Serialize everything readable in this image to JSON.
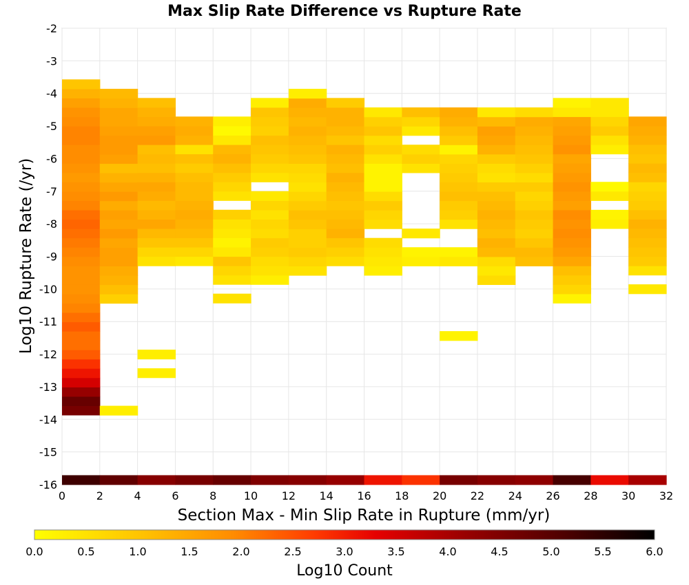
{
  "chart_data": {
    "type": "heatmap",
    "title": "Max Slip Rate Difference vs Rupture Rate",
    "xlabel": "Section Max - Min Slip Rate in Rupture (mm/yr)",
    "ylabel": "Log10 Rupture Rate (/yr)",
    "xlim": [
      0,
      32
    ],
    "ylim": [
      -16,
      -2
    ],
    "x_ticks": [
      "0",
      "2",
      "4",
      "6",
      "8",
      "10",
      "12",
      "14",
      "16",
      "18",
      "20",
      "22",
      "24",
      "26",
      "28",
      "30",
      "32"
    ],
    "y_ticks": [
      "-2",
      "-3",
      "-4",
      "-5",
      "-6",
      "-7",
      "-8",
      "-9",
      "-10",
      "-11",
      "-12",
      "-13",
      "-14",
      "-15",
      "-16"
    ],
    "grid": true,
    "x_bin_width": 2,
    "y_bin_height": 0.286,
    "colorbar": {
      "label": "Log10 Count",
      "range": [
        0,
        6
      ],
      "ticks": [
        "0.0",
        "0.5",
        "1.0",
        "1.5",
        "2.0",
        "2.5",
        "3.0",
        "3.5",
        "4.0",
        "4.5",
        "5.0",
        "5.5",
        "6.0"
      ]
    },
    "columns": [
      {
        "x0": 0,
        "ymax": -3.57,
        "bottom": [
          5.3,
          4.6,
          4.8,
          4.2,
          3.5,
          3.1,
          2.8,
          2.4,
          2.2,
          2.2,
          2.4,
          2.2,
          2.0,
          1.9,
          1.8,
          1.8,
          1.8,
          1.9,
          2.0,
          2.1,
          2.2,
          2.3,
          2.2,
          2.0,
          1.9,
          1.8,
          1.7,
          1.8,
          1.9,
          1.9,
          2.0,
          2.0,
          1.9,
          1.8,
          1.6,
          1.3,
          1.0
        ]
      },
      {
        "x0": 2,
        "ymax": -3.86,
        "bottom": [
          4.9,
          0.3,
          null,
          null,
          null,
          null,
          null,
          null,
          null,
          null,
          null,
          null,
          null,
          0.8,
          1.1,
          1.3,
          1.4,
          1.6,
          1.6,
          1.5,
          1.7,
          1.5,
          1.6,
          1.4,
          1.7,
          1.5,
          1.3,
          1.1,
          1.6,
          1.7,
          1.7,
          1.6,
          1.5,
          1.5,
          1.3,
          1.2
        ]
      },
      {
        "x0": 4,
        "ymax": -4.14,
        "bottom": [
          4.4,
          null,
          0.3,
          null,
          0.3,
          null,
          null,
          null,
          null,
          null,
          null,
          null,
          null,
          null,
          0.5,
          0.7,
          1.0,
          1.2,
          1.5,
          1.3,
          1.2,
          1.4,
          1.5,
          1.3,
          1.1,
          1.2,
          1.1,
          1.7,
          1.6,
          1.4,
          1.3,
          1.1
        ]
      },
      {
        "x0": 6,
        "ymax": -4.71,
        "bottom": [
          4.6,
          null,
          null,
          null,
          null,
          null,
          null,
          null,
          null,
          null,
          null,
          null,
          null,
          null,
          0.4,
          0.7,
          1.0,
          1.2,
          1.3,
          1.4,
          1.3,
          1.2,
          1.2,
          1.1,
          0.9,
          1.1,
          0.5,
          1.3,
          1.4,
          1.3
        ]
      },
      {
        "x0": 8,
        "ymax": -4.71,
        "bottom": [
          4.8,
          null,
          null,
          null,
          null,
          null,
          null,
          null,
          null,
          null,
          null,
          null,
          null,
          null,
          null,
          null,
          null,
          0.5,
          null,
          0.5,
          0.7,
          1.0,
          0.4,
          0.2,
          0.4,
          0.5,
          0.8,
          null,
          0.5,
          0.7,
          0.9,
          1.1,
          1.3,
          1.2,
          0.4,
          0.1,
          0.3
        ]
      },
      {
        "x0": 10,
        "ymax": -4.14,
        "bottom": [
          4.5,
          null,
          null,
          null,
          null,
          null,
          null,
          null,
          null,
          null,
          null,
          null,
          null,
          null,
          null,
          0.3,
          0.5,
          0.6,
          0.8,
          0.9,
          0.6,
          0.7,
          0.5,
          0.7,
          0.4,
          null,
          0.5,
          0.7,
          0.9,
          1.0,
          1.1,
          0.8,
          0.9,
          1.0,
          0.3
        ]
      },
      {
        "x0": 12,
        "ymax": -3.86,
        "bottom": [
          4.4,
          null,
          null,
          null,
          null,
          null,
          null,
          null,
          null,
          null,
          null,
          null,
          null,
          null,
          0.5,
          0.7,
          0.9,
          0.8,
          0.8,
          1.0,
          1.1,
          0.9,
          0.7,
          0.5,
          0.6,
          0.7,
          1.0,
          1.1,
          1.2,
          1.3,
          1.2,
          1.3,
          1.4,
          0.3
        ]
      },
      {
        "x0": 14,
        "ymax": -4.14,
        "bottom": [
          4.2,
          null,
          null,
          null,
          null,
          null,
          null,
          null,
          null,
          null,
          null,
          null,
          null,
          null,
          0.6,
          0.8,
          1.0,
          1.3,
          1.2,
          1.1,
          1.0,
          1.1,
          1.2,
          1.3,
          1.1,
          1.2,
          1.3,
          1.0,
          1.2,
          1.3,
          1.3,
          0.9
        ]
      },
      {
        "x0": 16,
        "ymax": -4.43,
        "bottom": [
          3.1,
          null,
          null,
          null,
          null,
          null,
          null,
          null,
          null,
          null,
          null,
          null,
          null,
          null,
          null,
          null,
          null,
          null,
          0.3,
          0.4,
          0.5,
          0.6,
          null,
          0.6,
          0.7,
          0.9,
          0.6,
          0.2,
          0.2,
          0.2,
          0.5,
          0.8,
          0.6,
          1.0,
          0.8,
          0.4
        ]
      },
      {
        "x0": 18,
        "ymax": -4.43,
        "bottom": [
          2.8,
          null,
          null,
          null,
          null,
          null,
          null,
          null,
          null,
          null,
          null,
          null,
          null,
          null,
          null,
          null,
          null,
          null,
          0.3,
          0.2,
          null,
          0.4,
          null,
          null,
          null,
          null,
          null,
          null,
          0.5,
          0.8,
          0.6,
          null,
          0.4,
          0.7,
          1.1
        ]
      },
      {
        "x0": 20,
        "ymax": -4.43,
        "bottom": [
          4.6,
          null,
          null,
          null,
          null,
          null,
          null,
          null,
          null,
          null,
          null,
          0.2,
          null,
          null,
          null,
          null,
          null,
          null,
          null,
          0.4,
          0.2,
          null,
          null,
          0.5,
          0.8,
          0.9,
          1.1,
          1.0,
          0.9,
          0.8,
          0.7,
          0.2,
          0.9,
          1.1,
          1.3,
          1.4
        ]
      },
      {
        "x0": 22,
        "ymax": -4.43,
        "bottom": [
          4.4,
          null,
          null,
          null,
          null,
          null,
          null,
          null,
          null,
          null,
          null,
          null,
          null,
          null,
          null,
          0.6,
          0.4,
          0.6,
          1.2,
          1.3,
          1.1,
          1.2,
          1.3,
          1.2,
          1.1,
          0.9,
          0.5,
          0.6,
          0.9,
          1.3,
          1.5,
          1.6,
          1.2,
          0.4
        ]
      },
      {
        "x0": 24,
        "ymax": -4.43,
        "bottom": [
          4.3,
          null,
          null,
          null,
          null,
          null,
          null,
          null,
          null,
          null,
          null,
          null,
          null,
          null,
          null,
          null,
          1.1,
          1.2,
          1.0,
          0.8,
          0.9,
          1.0,
          0.8,
          0.7,
          0.9,
          0.6,
          0.8,
          1.0,
          1.1,
          1.2,
          1.3,
          1.4,
          0.6
        ]
      },
      {
        "x0": 26,
        "ymax": -4.14,
        "bottom": [
          5.2,
          null,
          null,
          null,
          null,
          null,
          null,
          null,
          null,
          null,
          null,
          null,
          0.2,
          0.7,
          0.9,
          1.1,
          1.5,
          1.7,
          1.8,
          1.9,
          1.8,
          1.9,
          1.6,
          1.7,
          1.8,
          1.7,
          1.6,
          1.5,
          1.8,
          1.7,
          1.6,
          1.5,
          0.4,
          0.2
        ]
      },
      {
        "x0": 28,
        "ymax": -4.14,
        "bottom": [
          3.2,
          null,
          null,
          null,
          null,
          null,
          null,
          null,
          null,
          null,
          null,
          null,
          null,
          null,
          null,
          null,
          null,
          null,
          null,
          null,
          null,
          0.3,
          0.2,
          null,
          0.4,
          0.1,
          null,
          null,
          null,
          0.3,
          0.5,
          0.9,
          0.7,
          0.4,
          0.4
        ]
      },
      {
        "x0": 30,
        "ymax": -4.71,
        "bottom": [
          4.0,
          null,
          null,
          null,
          null,
          null,
          null,
          null,
          null,
          null,
          null,
          null,
          null,
          null,
          0.4,
          null,
          0.5,
          0.9,
          1.0,
          1.1,
          1.2,
          1.3,
          1.1,
          0.9,
          0.8,
          0.7,
          1.1,
          1.2,
          1.0,
          1.1,
          1.3,
          1.4,
          1.5
        ]
      }
    ]
  }
}
